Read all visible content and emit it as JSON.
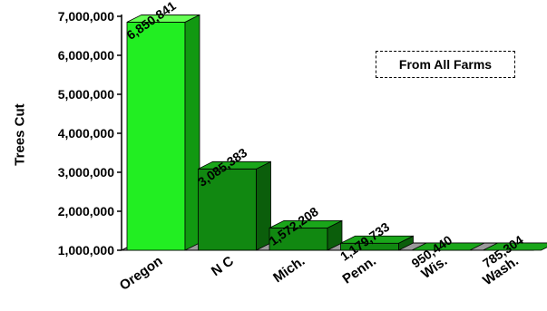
{
  "chart_data": {
    "type": "bar",
    "categories": [
      "Oregon",
      "N C",
      "Mich.",
      "Penn.",
      "Wis.",
      "Wash."
    ],
    "values": [
      6850841,
      3085383,
      1572208,
      1179733,
      950440,
      785304
    ],
    "value_labels": [
      "6,850,841",
      "3,085,383",
      "1,572,208",
      "1,179,733",
      "950,440",
      "785,304"
    ],
    "ylabel": "Trees Cut",
    "xlabel": "",
    "ylim": [
      1000000,
      7000000
    ],
    "yticks": [
      1000000,
      2000000,
      3000000,
      4000000,
      5000000,
      6000000,
      7000000
    ],
    "ytick_labels": [
      "1,000,000",
      "2,000,000",
      "3,000,000",
      "4,000,000",
      "5,000,000",
      "6,000,000",
      "7,000,000"
    ],
    "annotation": "From All Farms",
    "grid": false,
    "style": "3d",
    "colors": {
      "highlight_front": "#22ee22",
      "highlight_side": "#119911",
      "highlight_top": "#66ff55",
      "bar_front": "#118811",
      "bar_side": "#0b5e0b",
      "bar_top": "#1aa61a",
      "floor": "#9a9a9a"
    }
  }
}
